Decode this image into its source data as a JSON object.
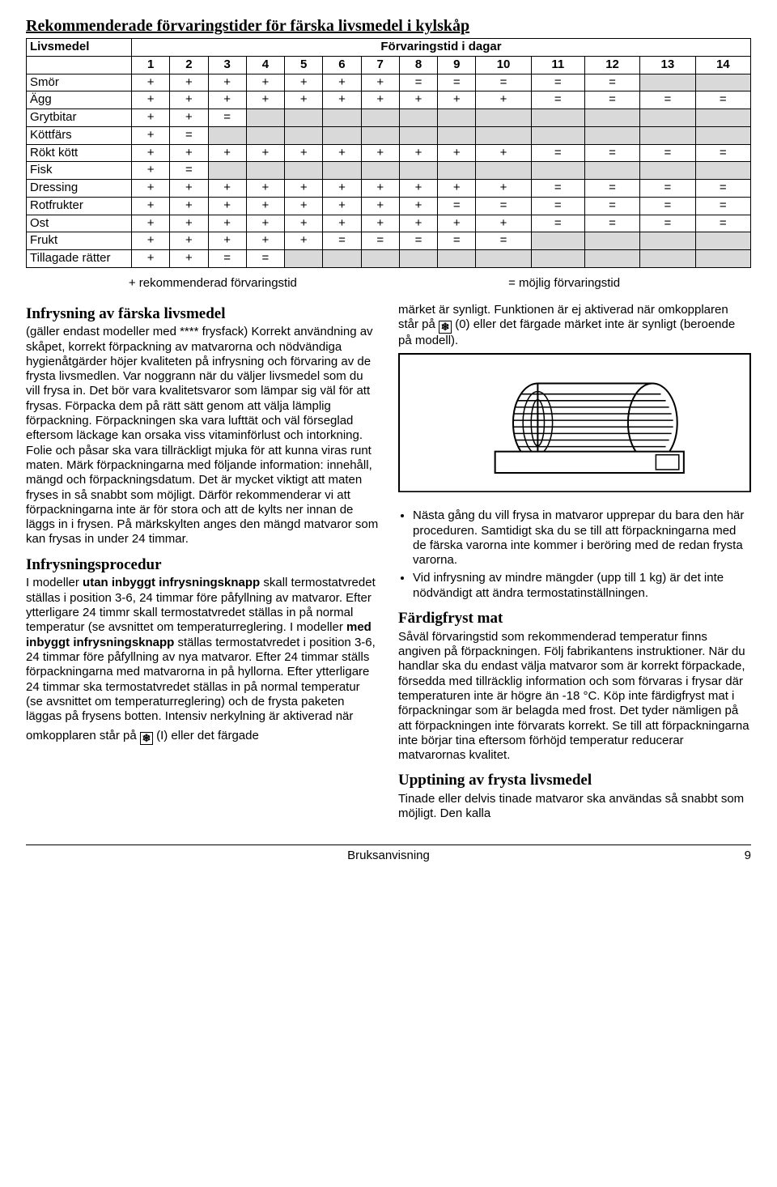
{
  "table": {
    "title": "Rekommenderade förvaringstider för färska livsmedel i kylskåp",
    "col1_header": "Livsmedel",
    "span_header": "Förvaringstid i dagar",
    "day_numbers": [
      "1",
      "2",
      "3",
      "4",
      "5",
      "6",
      "7",
      "8",
      "9",
      "10",
      "11",
      "12",
      "13",
      "14"
    ],
    "rows": [
      {
        "name": "Smör",
        "cells": [
          "+",
          "+",
          "+",
          "+",
          "+",
          "+",
          "+",
          "=",
          "=",
          "=",
          "=",
          "=",
          "",
          ""
        ]
      },
      {
        "name": "Ägg",
        "cells": [
          "+",
          "+",
          "+",
          "+",
          "+",
          "+",
          "+",
          "+",
          "+",
          "+",
          "=",
          "=",
          "=",
          "="
        ]
      },
      {
        "name": "Grytbitar",
        "cells": [
          "+",
          "+",
          "=",
          "",
          "",
          "",
          "",
          "",
          "",
          "",
          "",
          "",
          "",
          ""
        ]
      },
      {
        "name": "Köttfärs",
        "cells": [
          "+",
          "=",
          "",
          "",
          "",
          "",
          "",
          "",
          "",
          "",
          "",
          "",
          "",
          ""
        ]
      },
      {
        "name": "Rökt kött",
        "cells": [
          "+",
          "+",
          "+",
          "+",
          "+",
          "+",
          "+",
          "+",
          "+",
          "+",
          "=",
          "=",
          "=",
          "="
        ]
      },
      {
        "name": "Fisk",
        "cells": [
          "+",
          "=",
          "",
          "",
          "",
          "",
          "",
          "",
          "",
          "",
          "",
          "",
          "",
          ""
        ]
      },
      {
        "name": "Dressing",
        "cells": [
          "+",
          "+",
          "+",
          "+",
          "+",
          "+",
          "+",
          "+",
          "+",
          "+",
          "=",
          "=",
          "=",
          "="
        ]
      },
      {
        "name": "Rotfrukter",
        "cells": [
          "+",
          "+",
          "+",
          "+",
          "+",
          "+",
          "+",
          "+",
          "=",
          "=",
          "=",
          "=",
          "=",
          "="
        ]
      },
      {
        "name": "Ost",
        "cells": [
          "+",
          "+",
          "+",
          "+",
          "+",
          "+",
          "+",
          "+",
          "+",
          "+",
          "=",
          "=",
          "=",
          "="
        ]
      },
      {
        "name": "Frukt",
        "cells": [
          "+",
          "+",
          "+",
          "+",
          "+",
          "=",
          "=",
          "=",
          "=",
          "=",
          "",
          "",
          "",
          ""
        ]
      },
      {
        "name": "Tillagade rätter",
        "cells": [
          "+",
          "+",
          "=",
          "=",
          "",
          "",
          "",
          "",
          "",
          "",
          "",
          "",
          "",
          ""
        ]
      }
    ],
    "legend_plus": "+ rekommenderad förvaringstid",
    "legend_eq": "= möjlig förvaringstid",
    "colors": {
      "border": "#000000",
      "shaded_bg": "#d9d9d9",
      "background": "#ffffff"
    }
  },
  "left": {
    "h1": "Infrysning av färska livsmedel",
    "p1": "(gäller endast modeller med **** frysfack) Korrekt användning av skåpet, korrekt förpackning av matvarorna och nödvändiga hygienåtgärder höjer kvaliteten på infrysning och förvaring av de frysta livsmedlen. Var noggrann när du väljer livsmedel som du vill frysa in. Det bör vara kvalitetsvaror som lämpar sig väl för att frysas. Förpacka dem på rätt sätt genom att välja lämplig förpackning. Förpackningen ska vara lufttät och väl förseglad eftersom läckage kan orsaka viss vitaminförlust och intorkning. Folie och påsar ska vara tillräckligt mjuka för att kunna viras runt maten. Märk förpackningarna med följande information: innehåll, mängd och förpackningsdatum. Det är mycket viktigt att maten fryses in så snabbt som möjligt. Därför rekommenderar vi att förpackningarna inte är för stora och att de kylts ner innan de läggs in i frysen. På märkskylten anges den mängd matvaror som kan frysas in under 24 timmar.",
    "h2": "Infrysningsprocedur",
    "p2_a": "I modeller ",
    "p2_b_bold": "utan inbyggt infrysningsknapp",
    "p2_c": " skall termostatvredet ställas i position 3-6, 24 timmar före påfyllning av matvaror. Efter ytterligare 24 timmr skall termostatvredet ställas in på normal temperatur (se avsnittet om temperaturreglering. I modeller ",
    "p2_d_bold": "med inbyggt infrysningsknapp",
    "p2_e": " ställas termostatvredet i position 3-6, 24 timmar före påfyllning av nya matvaror. Efter 24 timmar ställs förpackningarna med matvarorna in på hyllorna. Efter ytterligare 24 timmar ska termostatvredet ställas in på normal temperatur (se avsnittet om temperaturreglering) och de frysta paketen läggas på frysens botten. Intensiv nerkylning är aktiverad när",
    "p2_f": "omkopplaren står på ",
    "p2_g": " (I) eller det färgade"
  },
  "right": {
    "p0_a": "märket är synligt. Funktionen är ej aktiverad när omkopplaren står på ",
    "p0_b": " (0) eller det färgade märket inte är synligt (beroende på modell).",
    "bullet1": "Nästa gång du vill frysa in matvaror upprepar du bara den här proceduren. Samtidigt ska du se till att förpackningarna med de färska varorna inte kommer i beröring med de redan frysta varorna.",
    "bullet2": "Vid infrysning av mindre mängder (upp till 1 kg) är det inte nödvändigt att ändra termostatinställningen.",
    "h3": "Färdigfryst mat",
    "p3": "Såväl förvaringstid som rekommenderad temperatur finns angiven på förpackningen. Följ fabrikantens instruktioner. När du handlar ska du endast välja matvaror som är korrekt förpackade, försedda med tillräcklig information och som förvaras i frysar där temperaturen inte är högre än -18 °C. Köp inte färdigfryst mat i förpackningar som är belagda med frost. Det tyder nämligen på att förpackningen inte förvarats korrekt. Se till att förpackningarna inte börjar tina eftersom förhöjd temperatur reducerar matvarornas kvalitet.",
    "h4": "Upptining av frysta livsmedel",
    "p4": "Tinade eller delvis tinade matvaror ska användas så snabbt som möjligt. Den kalla"
  },
  "footer": {
    "center": "Bruksanvisning",
    "page": "9"
  }
}
